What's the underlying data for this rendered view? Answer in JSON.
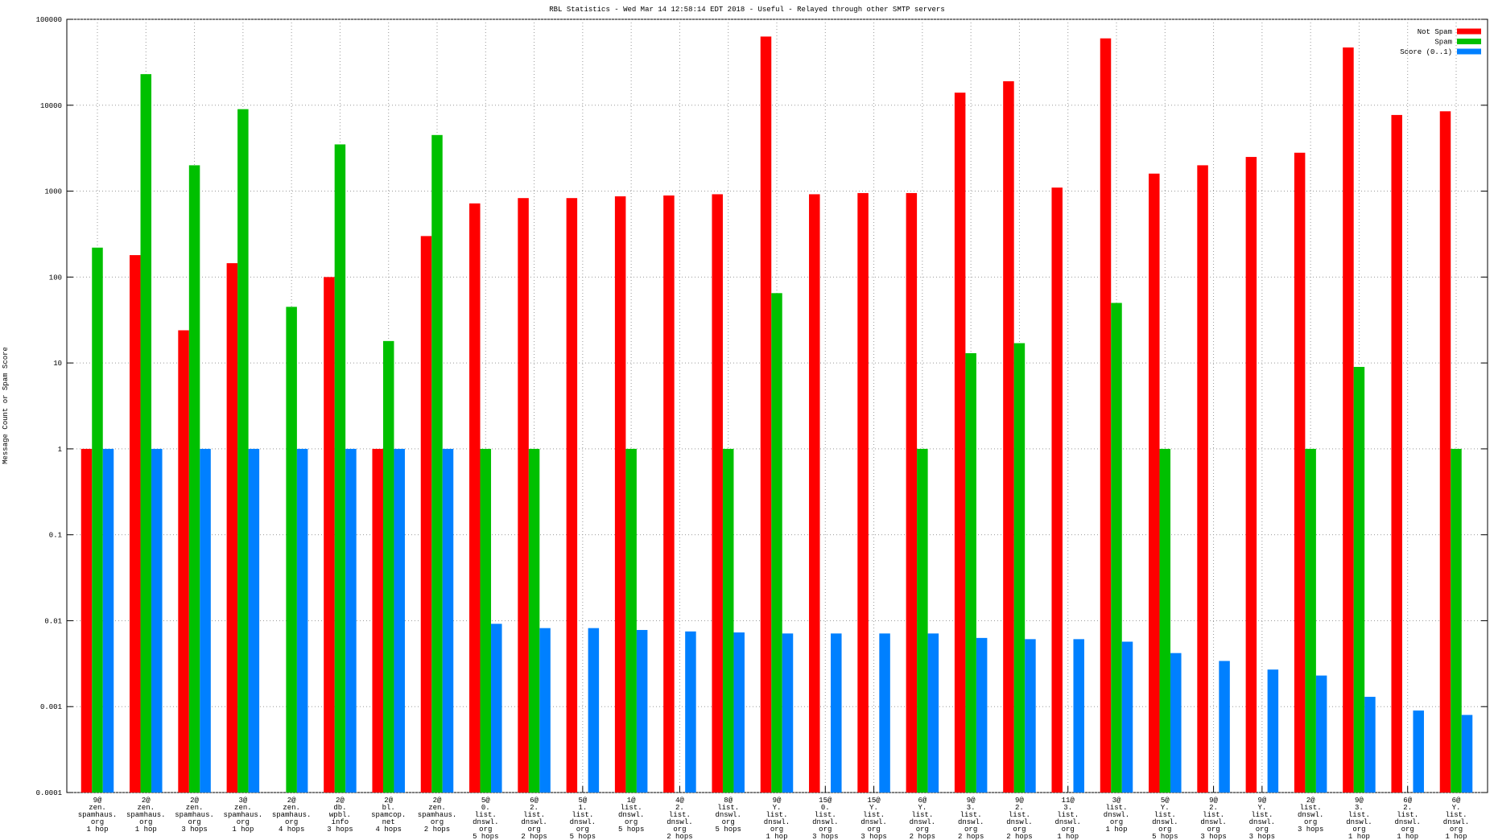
{
  "chart_data": {
    "type": "bar",
    "title": "RBL Statistics - Wed Mar 14 12:58:14 EDT 2018 - Useful - Relayed through other SMTP servers",
    "y_label": "Message Count or Spam Score",
    "log_scale_y": true,
    "grid": true,
    "legend_position": "top-right",
    "categories": [
      "9@\nzen.\nspamhaus.\norg\n1 hop",
      "2@\nzen.\nspamhaus.\norg\n1 hop",
      "2@\nzen.\nspamhaus.\norg\n3 hops",
      "3@\nzen.\nspamhaus.\norg\n1 hop",
      "2@\nzen.\nspamhaus.\norg\n4 hops",
      "2@\ndb.\nwpbl.\ninfo\n3 hops",
      "2@\nbl.\nspamcop.\nnet\n4 hops",
      "2@\nzen.\nspamhaus.\norg\n2 hops",
      "5@\n0.\nlist.\ndnswl.\norg\n5 hops",
      "6@\n2.\nlist.\ndnswl.\norg\n2 hops",
      "5@\n1.\nlist.\ndnswl.\norg\n5 hops",
      "1@\nlist.\ndnswl.\norg\n5 hops",
      "4@\n2.\nlist.\ndnswl.\norg\n2 hops",
      "8@\nlist.\ndnswl.\norg\n5 hops",
      "9@\nY.\nlist.\ndnswl.\norg\n1 hop",
      "15@\n0.\nlist.\ndnswl.\norg\n3 hops",
      "15@\nY.\nlist.\ndnswl.\norg\n3 hops",
      "6@\nY.\nlist.\ndnswl.\norg\n2 hops",
      "9@\n3.\nlist.\ndnswl.\norg\n2 hops",
      "9@\n2.\nlist.\ndnswl.\norg\n2 hops",
      "11@\n3.\nlist.\ndnswl.\norg\n1 hop",
      "3@\nlist.\ndnswl.\norg\n1 hop",
      "5@\nY.\nlist.\ndnswl.\norg\n5 hops",
      "9@\n2.\nlist.\ndnswl.\norg\n3 hops",
      "9@\nY.\nlist.\ndnswl.\norg\n3 hops",
      "2@\nlist.\ndnswl.\norg\n3 hops",
      "9@\n3.\nlist.\ndnswl.\norg\n1 hop",
      "6@\n2.\nlist.\ndnswl.\norg\n1 hop",
      "6@\nY.\nlist.\ndnswl.\norg\n1 hop"
    ],
    "series": [
      {
        "name": "Not Spam",
        "color": "#ff0000",
        "values": [
          1,
          180,
          24,
          145,
          null,
          100,
          1,
          300,
          720,
          830,
          830,
          870,
          890,
          920,
          63000,
          920,
          950,
          950,
          14000,
          19000,
          1100,
          60000,
          1600,
          2000,
          2500,
          2800,
          47000,
          7700,
          8500
        ]
      },
      {
        "name": "Spam",
        "color": "#00c000",
        "values": [
          220,
          23000,
          2000,
          9000,
          45,
          3500,
          18,
          4500,
          1,
          1,
          null,
          1,
          null,
          1,
          65,
          null,
          null,
          1,
          13,
          17,
          null,
          50,
          1,
          null,
          null,
          1,
          9,
          null,
          1
        ]
      },
      {
        "name": "Score (0..1)",
        "color": "#0080ff",
        "values": [
          1,
          1,
          1,
          1,
          1,
          1,
          1,
          1,
          0.0092,
          0.0082,
          0.0082,
          0.0078,
          0.0075,
          0.0073,
          0.0071,
          0.0071,
          0.0071,
          0.0071,
          0.0063,
          0.0061,
          0.0061,
          0.0057,
          0.0042,
          0.0034,
          0.0027,
          0.0023,
          0.0013,
          0.0009,
          0.0008
        ]
      }
    ],
    "ylim": [
      0.0001,
      100000
    ],
    "yticks": [
      0.0001,
      0.001,
      0.01,
      0.1,
      1,
      10,
      100,
      1000,
      10000,
      100000
    ]
  }
}
